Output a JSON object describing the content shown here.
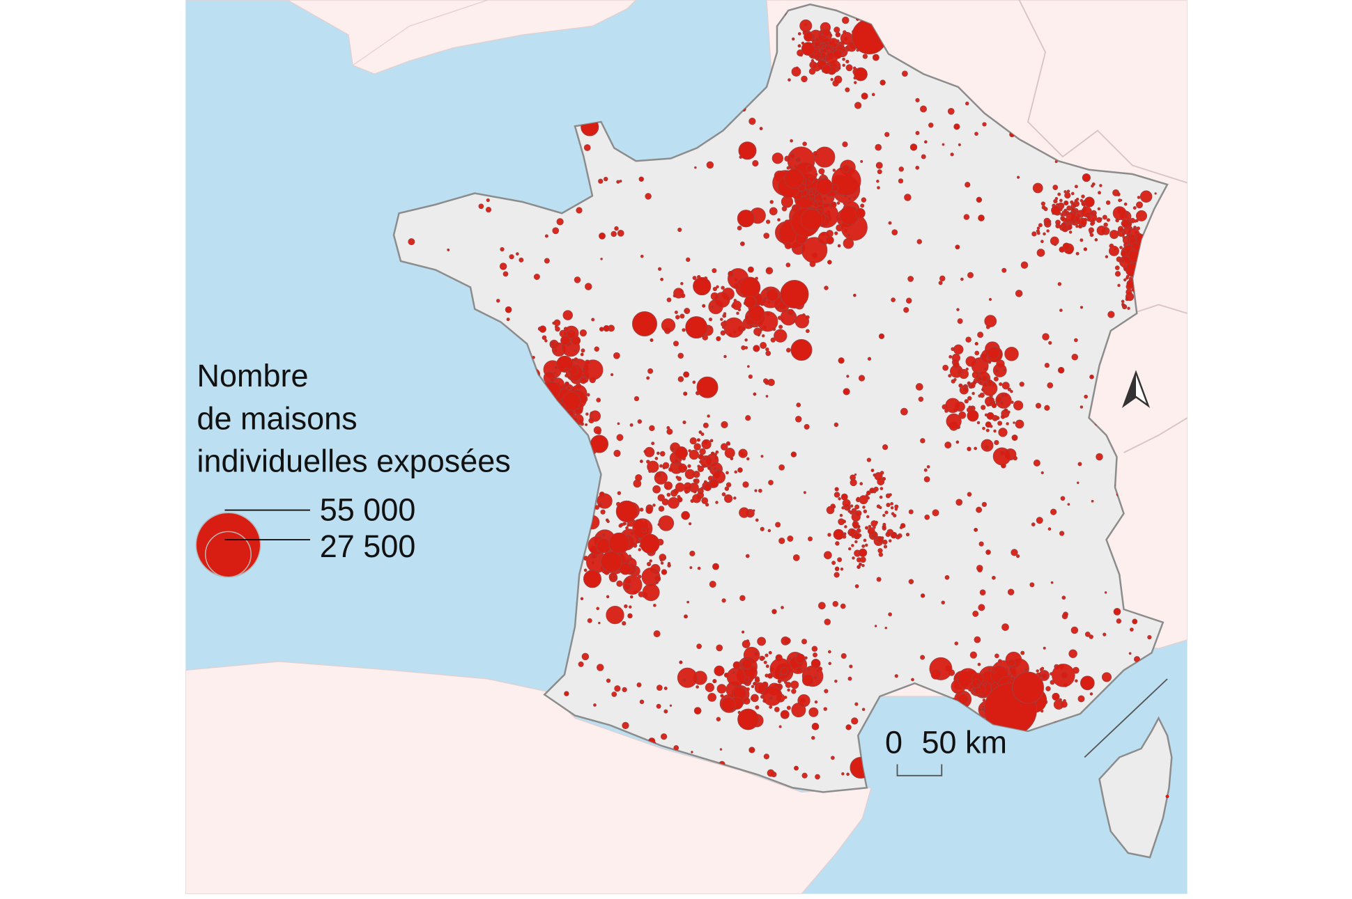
{
  "legend": {
    "title": [
      "Nombre",
      "de maisons",
      "individuelles exposées"
    ],
    "sizes": [
      {
        "value": 55000,
        "label": "55 000"
      },
      {
        "value": 27500,
        "label": "27 500"
      }
    ]
  },
  "scale_bar": {
    "start": "0",
    "end": "50 km"
  }
}
